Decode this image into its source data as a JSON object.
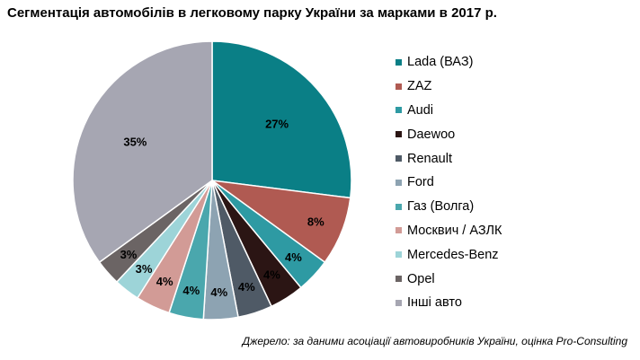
{
  "chart_data": {
    "type": "pie",
    "title": "Сегментація автомобілів в легковому парку України за марками в 2017 р.",
    "source": "Джерело: за даними асоціації автовиробників України, оцінка Pro-Consulting",
    "legend_position": "right",
    "slices": [
      {
        "name": "Lada (ВАЗ)",
        "value": 27,
        "label": "27%",
        "color": "#0a7f86"
      },
      {
        "name": "ZAZ",
        "value": 8,
        "label": "8%",
        "color": "#b05a52"
      },
      {
        "name": "Audi",
        "value": 4,
        "label": "4%",
        "color": "#2e9aa3"
      },
      {
        "name": "Daewoo",
        "value": 4,
        "label": "4%",
        "color": "#2b1514"
      },
      {
        "name": "Renault",
        "value": 4,
        "label": "4%",
        "color": "#4f5a66"
      },
      {
        "name": "Ford",
        "value": 4,
        "label": "4%",
        "color": "#8da3b2"
      },
      {
        "name": "Газ (Волга)",
        "value": 4,
        "label": "4%",
        "color": "#4aa7ad"
      },
      {
        "name": "Москвич / АЗЛК",
        "value": 4,
        "label": "4%",
        "color": "#d29b96"
      },
      {
        "name": "Mercedes-Benz",
        "value": 3,
        "label": "3%",
        "color": "#9dd4d8"
      },
      {
        "name": "Opel",
        "value": 3,
        "label": "3%",
        "color": "#6b6464"
      },
      {
        "name": "Інші авто",
        "value": 35,
        "label": "35%",
        "color": "#a6a6b2"
      }
    ]
  }
}
